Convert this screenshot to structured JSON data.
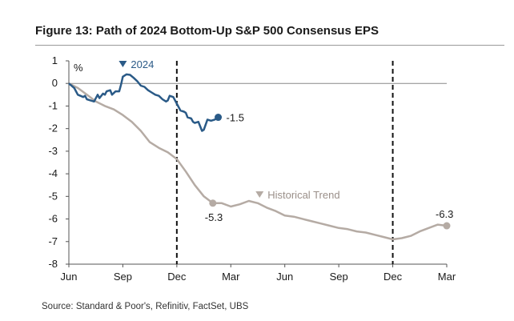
{
  "title": "Figure 13: Path of 2024 Bottom-Up S&P 500 Consensus EPS",
  "source": "Source: Standard & Poor's, Refinitiv, FactSet, UBS",
  "chart_data": {
    "type": "line",
    "ylabel": "%",
    "ylim": [
      -8,
      1
    ],
    "yticks": [
      1,
      0,
      -1,
      -2,
      -3,
      -4,
      -5,
      -6,
      -7,
      -8
    ],
    "x_tick_labels": [
      "Jun",
      "Sep",
      "Dec",
      "Mar",
      "Jun",
      "Sep",
      "Dec",
      "Mar"
    ],
    "x_units": "months since June",
    "xlim": [
      0,
      21
    ],
    "vlines": [
      6,
      18
    ],
    "grid": false,
    "colors": {
      "series_2024": "#2a5a87",
      "historical": "#b5aba4"
    },
    "series": [
      {
        "name": "2024",
        "key": "s2024",
        "x": [
          0,
          0.3,
          0.5,
          0.8,
          0.9,
          1.0,
          1.2,
          1.4,
          1.6,
          1.7,
          1.9,
          2.0,
          2.1,
          2.3,
          2.4,
          2.6,
          2.8,
          2.9,
          3.0,
          3.2,
          3.4,
          3.6,
          3.8,
          4.0,
          4.2,
          4.4,
          4.6,
          4.8,
          5.0,
          5.2,
          5.4,
          5.5,
          5.6,
          5.8,
          6.0,
          6.2,
          6.4,
          6.5,
          6.6,
          6.8,
          6.9,
          7.0,
          7.2,
          7.4,
          7.5,
          7.7,
          7.9,
          8.1,
          8.3
        ],
        "y": [
          0,
          -0.2,
          -0.5,
          -0.6,
          -0.55,
          -0.7,
          -0.75,
          -0.8,
          -0.5,
          -0.65,
          -0.45,
          -0.5,
          -0.35,
          -0.3,
          -0.5,
          -0.35,
          -0.35,
          -0.05,
          0.3,
          0.4,
          0.38,
          0.25,
          0.1,
          -0.1,
          -0.15,
          -0.3,
          -0.4,
          -0.5,
          -0.55,
          -0.7,
          -0.8,
          -0.75,
          -0.55,
          -0.6,
          -0.9,
          -1.2,
          -1.25,
          -1.3,
          -1.5,
          -1.55,
          -1.7,
          -1.75,
          -1.7,
          -2.1,
          -2.05,
          -1.6,
          -1.65,
          -1.6,
          -1.5
        ]
      },
      {
        "name": "Historical Trend",
        "key": "hist",
        "x": [
          0,
          0.5,
          1,
          1.5,
          2,
          2.5,
          3,
          3.5,
          4,
          4.5,
          5,
          5.5,
          6,
          6.5,
          7,
          7.5,
          8,
          8.5,
          9,
          9.5,
          10,
          10.5,
          11,
          11.5,
          12,
          12.5,
          13,
          13.5,
          14,
          14.5,
          15,
          15.5,
          16,
          16.5,
          17,
          17.5,
          18,
          18.5,
          19,
          19.5,
          20,
          20.5,
          21
        ],
        "y": [
          0,
          -0.2,
          -0.5,
          -0.8,
          -1.0,
          -1.15,
          -1.4,
          -1.7,
          -2.1,
          -2.6,
          -2.85,
          -3.05,
          -3.35,
          -3.9,
          -4.5,
          -5.0,
          -5.3,
          -5.3,
          -5.45,
          -5.35,
          -5.2,
          -5.3,
          -5.5,
          -5.65,
          -5.85,
          -5.9,
          -6.0,
          -6.1,
          -6.2,
          -6.3,
          -6.4,
          -6.45,
          -6.55,
          -6.6,
          -6.7,
          -6.8,
          -6.9,
          -6.85,
          -6.75,
          -6.55,
          -6.4,
          -6.25,
          -6.3
        ]
      }
    ],
    "annotations": {
      "s2024_label": "2024",
      "s2024_end": "-1.5",
      "hist_label": "Historical Trend",
      "hist_dec": "-5.3",
      "hist_end": "-6.3"
    }
  }
}
